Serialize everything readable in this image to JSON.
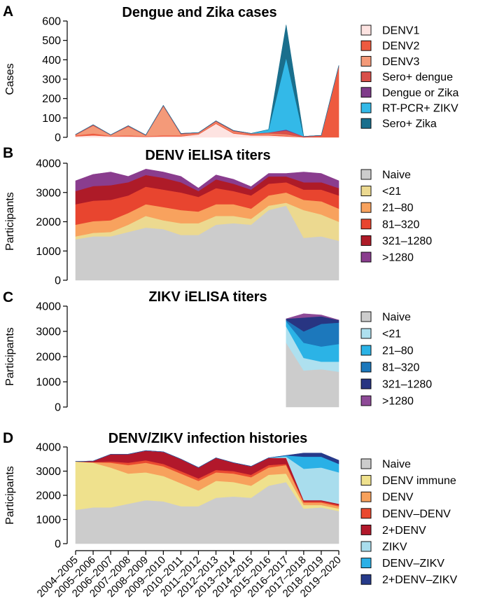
{
  "chart_data": [
    {
      "type": "area",
      "panel": "A",
      "title": "Dengue and Zika cases",
      "ylabel": "Cases",
      "ylim": [
        0,
        600
      ],
      "yticks": [
        0,
        100,
        200,
        300,
        400,
        500,
        600
      ],
      "x": [
        "2004–2005",
        "2005–2006",
        "2006–2007",
        "2007–2008",
        "2008–2009",
        "2009–2010",
        "2010–2011",
        "2011–2012",
        "2012–2013",
        "2013–2014",
        "2014–2015",
        "2015–2016",
        "2016–2017",
        "2017–2018",
        "2018–2019",
        "2019–2020"
      ],
      "series": [
        {
          "name": "DENV1",
          "color": "#fde3e1",
          "values": [
            5,
            10,
            5,
            5,
            3,
            5,
            5,
            15,
            70,
            20,
            10,
            10,
            5,
            0,
            0,
            0
          ]
        },
        {
          "name": "DENV2",
          "color": "#ee5a3f",
          "values": [
            5,
            10,
            3,
            5,
            3,
            5,
            5,
            3,
            5,
            5,
            5,
            5,
            5,
            0,
            5,
            360
          ]
        },
        {
          "name": "DENV3",
          "color": "#f49a79",
          "values": [
            2,
            40,
            3,
            45,
            3,
            150,
            5,
            3,
            5,
            5,
            2,
            5,
            5,
            0,
            0,
            0
          ]
        },
        {
          "name": "Sero+ dengue",
          "color": "#d9504a",
          "values": [
            3,
            5,
            2,
            5,
            3,
            5,
            5,
            3,
            5,
            5,
            3,
            5,
            20,
            5,
            5,
            10
          ]
        },
        {
          "name": "Dengue or Zika",
          "color": "#7f3b8a",
          "values": [
            0,
            0,
            0,
            0,
            0,
            0,
            0,
            0,
            0,
            0,
            0,
            0,
            5,
            0,
            0,
            0
          ]
        },
        {
          "name": "RT-PCR+ ZIKV",
          "color": "#33b9e8",
          "values": [
            0,
            0,
            0,
            0,
            0,
            0,
            0,
            0,
            0,
            0,
            0,
            15,
            370,
            0,
            0,
            0
          ]
        },
        {
          "name": "Sero+ Zika",
          "color": "#1a6f8d",
          "values": [
            0,
            0,
            0,
            0,
            0,
            0,
            0,
            0,
            0,
            0,
            0,
            0,
            170,
            0,
            0,
            0
          ]
        }
      ]
    },
    {
      "type": "area",
      "panel": "B",
      "title": "DENV iELISA titers",
      "ylabel": "Participants",
      "ylim": [
        0,
        4000
      ],
      "yticks": [
        0,
        1000,
        2000,
        3000,
        4000
      ],
      "x": [
        "2004–2005",
        "2005–2006",
        "2006–2007",
        "2007–2008",
        "2008–2009",
        "2009–2010",
        "2010–2011",
        "2011–2012",
        "2012–2013",
        "2013–2014",
        "2014–2015",
        "2015–2016",
        "2016–2017",
        "2017–2018",
        "2018–2019",
        "2019–2020"
      ],
      "series": [
        {
          "name": "Naive",
          "color": "#cccccc",
          "values": [
            1400,
            1500,
            1500,
            1650,
            1800,
            1750,
            1550,
            1550,
            1900,
            1950,
            1900,
            2400,
            2550,
            1450,
            1500,
            1350
          ]
        },
        {
          "name": "<21",
          "color": "#ecd990",
          "values": [
            100,
            120,
            150,
            250,
            400,
            300,
            400,
            400,
            300,
            250,
            200,
            150,
            100,
            950,
            750,
            650
          ]
        },
        {
          "name": "21–80",
          "color": "#f8a25e",
          "values": [
            400,
            400,
            400,
            400,
            400,
            450,
            450,
            400,
            400,
            400,
            350,
            350,
            350,
            350,
            450,
            450
          ]
        },
        {
          "name": "81–320",
          "color": "#e8452f",
          "values": [
            700,
            700,
            700,
            600,
            600,
            600,
            600,
            500,
            550,
            450,
            450,
            400,
            350,
            350,
            400,
            450
          ]
        },
        {
          "name": "321–1280",
          "color": "#ae1b28",
          "values": [
            450,
            500,
            500,
            450,
            400,
            400,
            350,
            200,
            300,
            250,
            200,
            250,
            200,
            250,
            250,
            250
          ]
        },
        {
          "name": ">1280",
          "color": "#8a3d8e",
          "values": [
            350,
            400,
            450,
            200,
            200,
            200,
            200,
            100,
            150,
            150,
            100,
            100,
            100,
            350,
            300,
            250
          ]
        }
      ]
    },
    {
      "type": "area",
      "panel": "C",
      "title": "ZIKV iELISA titers",
      "ylabel": "Participants",
      "ylim": [
        0,
        4000
      ],
      "yticks": [
        0,
        1000,
        2000,
        3000,
        4000
      ],
      "x": [
        "2004–2005",
        "2005–2006",
        "2006–2007",
        "2007–2008",
        "2008–2009",
        "2009–2010",
        "2010–2011",
        "2011–2012",
        "2012–2013",
        "2013–2014",
        "2014–2015",
        "2015–2016",
        "2016–2017",
        "2017–2018",
        "2018–2019",
        "2019–2020"
      ],
      "series": [
        {
          "name": "Naive",
          "color": "#cccccc",
          "values": [
            null,
            null,
            null,
            null,
            null,
            null,
            null,
            null,
            null,
            null,
            null,
            null,
            2550,
            1450,
            1500,
            1400
          ]
        },
        {
          "name": "<21",
          "color": "#aee0ef",
          "values": [
            null,
            null,
            null,
            null,
            null,
            null,
            null,
            null,
            null,
            null,
            null,
            null,
            650,
            500,
            300,
            400
          ]
        },
        {
          "name": "21–80",
          "color": "#2bb3e6",
          "values": [
            null,
            null,
            null,
            null,
            null,
            null,
            null,
            null,
            null,
            null,
            null,
            null,
            200,
            600,
            600,
            700
          ]
        },
        {
          "name": "81–320",
          "color": "#1c78bc",
          "values": [
            null,
            null,
            null,
            null,
            null,
            null,
            null,
            null,
            null,
            null,
            null,
            null,
            50,
            450,
            900,
            850
          ]
        },
        {
          "name": "321–1280",
          "color": "#283582",
          "values": [
            null,
            null,
            null,
            null,
            null,
            null,
            null,
            null,
            null,
            null,
            null,
            null,
            50,
            550,
            300,
            100
          ]
        },
        {
          "name": ">1280",
          "color": "#8e4a97",
          "values": [
            null,
            null,
            null,
            null,
            null,
            null,
            null,
            null,
            null,
            null,
            null,
            null,
            0,
            150,
            50,
            0
          ]
        }
      ]
    },
    {
      "type": "area",
      "panel": "D",
      "title": "DENV/ZIKV infection histories",
      "ylabel": "Participants",
      "ylim": [
        0,
        4000
      ],
      "yticks": [
        0,
        1000,
        2000,
        3000,
        4000
      ],
      "x": [
        "2004–2005",
        "2005–2006",
        "2006–2007",
        "2007–2008",
        "2008–2009",
        "2009–2010",
        "2010–2011",
        "2011–2012",
        "2012–2013",
        "2013–2014",
        "2014–2015",
        "2015–2016",
        "2016–2017",
        "2017–2018",
        "2018–2019",
        "2019–2020"
      ],
      "series": [
        {
          "name": "Naive",
          "color": "#cccccc",
          "values": [
            1400,
            1500,
            1500,
            1650,
            1800,
            1750,
            1550,
            1550,
            1900,
            1950,
            1900,
            2400,
            2550,
            1450,
            1500,
            1350
          ]
        },
        {
          "name": "DENV immune",
          "color": "#efe18d",
          "values": [
            2000,
            1850,
            1650,
            1250,
            1150,
            1050,
            950,
            650,
            700,
            600,
            500,
            450,
            350,
            150,
            100,
            100
          ]
        },
        {
          "name": "DENV",
          "color": "#f7a15c",
          "values": [
            0,
            20,
            200,
            350,
            400,
            400,
            400,
            400,
            350,
            350,
            350,
            300,
            350,
            100,
            100,
            100
          ]
        },
        {
          "name": "DENV–DENV",
          "color": "#ea4a30",
          "values": [
            0,
            0,
            50,
            100,
            100,
            100,
            100,
            100,
            100,
            100,
            100,
            100,
            50,
            50,
            50,
            50
          ]
        },
        {
          "name": "2+DENV",
          "color": "#b2182b",
          "values": [
            0,
            50,
            300,
            350,
            400,
            500,
            500,
            450,
            500,
            350,
            350,
            300,
            250,
            50,
            50,
            50
          ]
        },
        {
          "name": "ZIKV",
          "color": "#a9dded",
          "values": [
            0,
            0,
            0,
            0,
            0,
            0,
            0,
            0,
            0,
            0,
            0,
            0,
            50,
            1300,
            1350,
            1300
          ]
        },
        {
          "name": "DENV–ZIKV",
          "color": "#2ab0e6",
          "values": [
            0,
            0,
            0,
            0,
            0,
            0,
            0,
            0,
            0,
            0,
            0,
            0,
            50,
            500,
            450,
            350
          ]
        },
        {
          "name": "2+DENV–ZIKV",
          "color": "#263a8a",
          "values": [
            0,
            0,
            0,
            0,
            0,
            0,
            0,
            0,
            0,
            0,
            0,
            0,
            0,
            150,
            150,
            150
          ]
        }
      ]
    }
  ]
}
